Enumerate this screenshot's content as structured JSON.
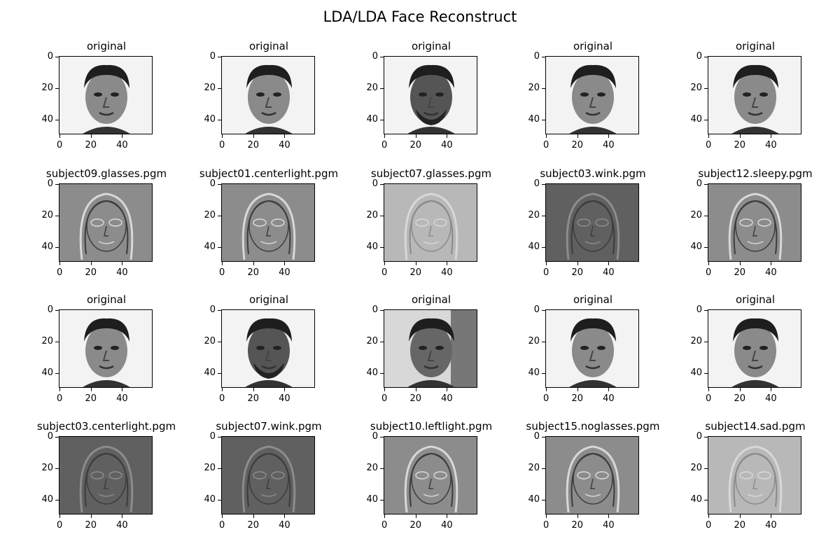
{
  "title": "LDA/LDA Face Reconstruct",
  "chart_data": {
    "type": "image-grid",
    "title": "LDA/LDA Face Reconstruct",
    "rows": 4,
    "cols": 5,
    "image_extent": {
      "x": [
        0,
        59
      ],
      "y": [
        0,
        49
      ]
    },
    "xticks": [
      "0",
      "20",
      "40"
    ],
    "yticks": [
      "0",
      "20",
      "40"
    ],
    "panels": [
      {
        "title": "original",
        "kind": "face",
        "tone": "light"
      },
      {
        "title": "original",
        "kind": "face",
        "tone": "light"
      },
      {
        "title": "original",
        "kind": "face",
        "tone": "dark"
      },
      {
        "title": "original",
        "kind": "face",
        "tone": "light"
      },
      {
        "title": "original",
        "kind": "face",
        "tone": "light"
      },
      {
        "title": "subject09.glasses.pgm",
        "kind": "reconstruction",
        "tone": "mid"
      },
      {
        "title": "subject01.centerlight.pgm",
        "kind": "reconstruction",
        "tone": "mid"
      },
      {
        "title": "subject07.glasses.pgm",
        "kind": "reconstruction",
        "tone": "light"
      },
      {
        "title": "subject03.wink.pgm",
        "kind": "reconstruction",
        "tone": "dark"
      },
      {
        "title": "subject12.sleepy.pgm",
        "kind": "reconstruction",
        "tone": "mid"
      },
      {
        "title": "original",
        "kind": "face",
        "tone": "light"
      },
      {
        "title": "original",
        "kind": "face",
        "tone": "dark"
      },
      {
        "title": "original",
        "kind": "face",
        "tone": "shadow"
      },
      {
        "title": "original",
        "kind": "face",
        "tone": "light"
      },
      {
        "title": "original",
        "kind": "face",
        "tone": "light"
      },
      {
        "title": "subject03.centerlight.pgm",
        "kind": "reconstruction",
        "tone": "dark"
      },
      {
        "title": "subject07.wink.pgm",
        "kind": "reconstruction",
        "tone": "dark"
      },
      {
        "title": "subject10.leftlight.pgm",
        "kind": "reconstruction",
        "tone": "mid"
      },
      {
        "title": "subject15.noglasses.pgm",
        "kind": "reconstruction",
        "tone": "mid"
      },
      {
        "title": "subject14.sad.pgm",
        "kind": "reconstruction",
        "tone": "light"
      }
    ]
  }
}
